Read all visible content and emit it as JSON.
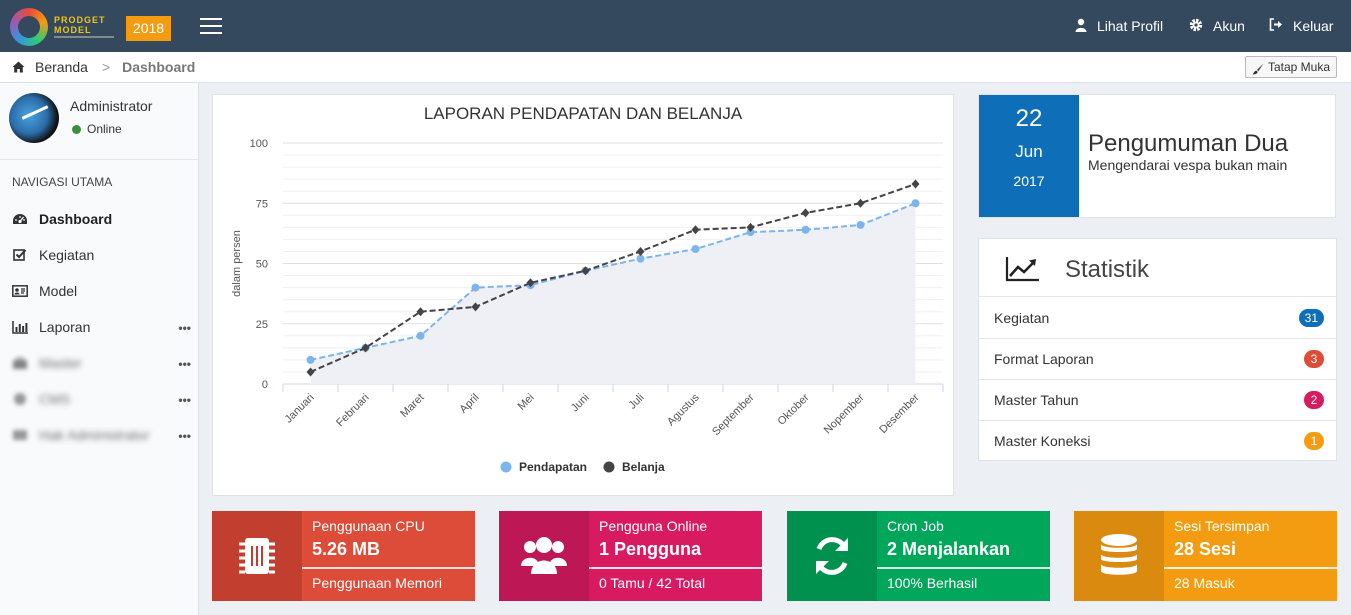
{
  "header": {
    "logo_line1": "PRODGET",
    "logo_line2": "MODEL",
    "year": "2018",
    "nav": [
      {
        "label": "Lihat Profil",
        "icon": "user-icon"
      },
      {
        "label": "Akun",
        "icon": "gear-icon"
      },
      {
        "label": "Keluar",
        "icon": "sign-out-icon"
      }
    ]
  },
  "breadcrumb": {
    "home": "Beranda",
    "separator": ">",
    "current": "Dashboard",
    "tatap_muka": "Tatap Muka"
  },
  "sidebar": {
    "user_name": "Administrator",
    "user_status": "Online",
    "nav_header": "NAVIGASI UTAMA",
    "items": [
      {
        "label": "Dashboard",
        "icon": "dashboard-icon"
      },
      {
        "label": "Kegiatan",
        "icon": "check-square-icon"
      },
      {
        "label": "Model",
        "icon": "id-card-icon"
      },
      {
        "label": "Laporan",
        "icon": "bar-chart-icon",
        "more": "•••"
      },
      {
        "label": "Master",
        "icon": "briefcase-icon",
        "more": "•••"
      },
      {
        "label": "CMS",
        "icon": "cms-icon",
        "more": "•••"
      },
      {
        "label": "Hak Administrator",
        "icon": "admin-icon",
        "more": "•••"
      }
    ]
  },
  "chart_data": {
    "type": "line",
    "title": "LAPORAN PENDAPATAN DAN BELANJA",
    "ylabel": "dalam persen",
    "xlabel": "",
    "ylim": [
      0,
      100
    ],
    "yticks": [
      0,
      25,
      50,
      75,
      100
    ],
    "categories": [
      "Januari",
      "Februari",
      "Maret",
      "April",
      "Mei",
      "Juni",
      "Juli",
      "Agustus",
      "September",
      "Oktober",
      "Nopember",
      "Desember"
    ],
    "series": [
      {
        "name": "Pendapatan",
        "color": "#7cb5ec",
        "values": [
          10,
          15,
          20,
          40,
          41,
          47,
          52,
          56,
          63,
          64,
          66,
          75
        ]
      },
      {
        "name": "Belanja",
        "color": "#434348",
        "values": [
          5,
          15,
          30,
          32,
          42,
          47,
          55,
          64,
          65,
          71,
          75,
          83
        ]
      }
    ],
    "legend": "bottom-center",
    "grid": true
  },
  "announcement": {
    "day": "22",
    "month": "Jun",
    "year": "2017",
    "title": "Pengumuman Dua",
    "subtitle": "Mengendarai vespa bukan main"
  },
  "statistik": {
    "title": "Statistik",
    "rows": [
      {
        "label": "Kegiatan",
        "count": "31",
        "color": "#0e6fb8"
      },
      {
        "label": "Format Laporan",
        "count": "3",
        "color": "#dd4b39"
      },
      {
        "label": "Master Tahun",
        "count": "2",
        "color": "#d81b60"
      },
      {
        "label": "Master Koneksi",
        "count": "1",
        "color": "#f39c12"
      }
    ]
  },
  "infoboxes": [
    {
      "title": "Penggunaan CPU",
      "value": "5.26 MB",
      "footer": "Penggunaan Memori",
      "bg": "#dd4b39",
      "iconbg": "#c23f2f",
      "icon": "cpu-chip-icon"
    },
    {
      "title": "Pengguna Online",
      "value": "1 Pengguna",
      "footer": "0 Tamu / 42 Total",
      "bg": "#d81b60",
      "iconbg": "#bd1755",
      "icon": "users-icon"
    },
    {
      "title": "Cron Job",
      "value": "2 Menjalankan",
      "footer": "100% Berhasil",
      "bg": "#00a65a",
      "iconbg": "#00914f",
      "icon": "refresh-icon"
    },
    {
      "title": "Sesi Tersimpan",
      "value": "28 Sesi",
      "footer": "28 Masuk",
      "bg": "#f39c12",
      "iconbg": "#da8a0f",
      "icon": "database-icon"
    }
  ]
}
